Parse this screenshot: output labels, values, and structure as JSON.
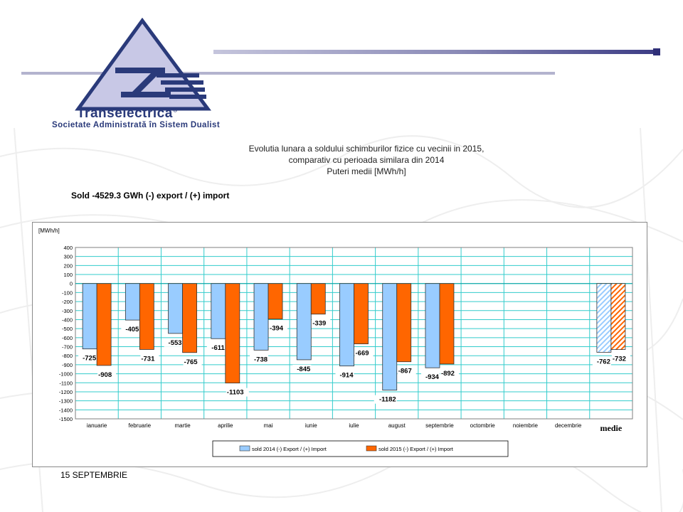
{
  "header": {
    "company_name": "Transelectrica",
    "company_subtitle": "Societate Administrată în Sistem Dualist",
    "reg_mark": "®"
  },
  "title_lines": [
    "Evolutia lunara a soldului schimburilor fizice cu vecinii in 2015,",
    "comparativ cu perioada similara din 2014",
    "Puteri medii [MWh/h]"
  ],
  "summary": "Sold -4529.3 GWh   (-) export / (+) import",
  "footer_date": "15 SEPTEMBRIE",
  "colors": {
    "series_2014": "#99ccff",
    "series_2015": "#ff6600",
    "grid": "#33cccc",
    "logo_blue": "#2a3a7a",
    "logo_fill": "#c8c8e6"
  },
  "chart_data": {
    "type": "bar",
    "unit_label": "[MWh/h]",
    "categories": [
      "ianuarie",
      "februarie",
      "martie",
      "aprilie",
      "mai",
      "iunie",
      "iulie",
      "august",
      "septembrie",
      "octombrie",
      "noiembrie",
      "decembrie",
      "medie"
    ],
    "series": [
      {
        "name": "sold 2014 (-) Export / (+) Import",
        "values": [
          -725,
          -405,
          -553,
          -611,
          -738,
          -845,
          -914,
          -1182,
          -934,
          null,
          null,
          null,
          -762
        ]
      },
      {
        "name": "sold 2015 (-) Export / (+) Import",
        "values": [
          -908,
          -731,
          -765,
          -1103,
          -394,
          -339,
          -669,
          -867,
          -892,
          null,
          null,
          null,
          -732
        ]
      }
    ],
    "ylim": [
      -1500,
      400
    ],
    "ytick_step": 100,
    "grid": true,
    "legend_position": "bottom",
    "hatched_category": "medie"
  }
}
